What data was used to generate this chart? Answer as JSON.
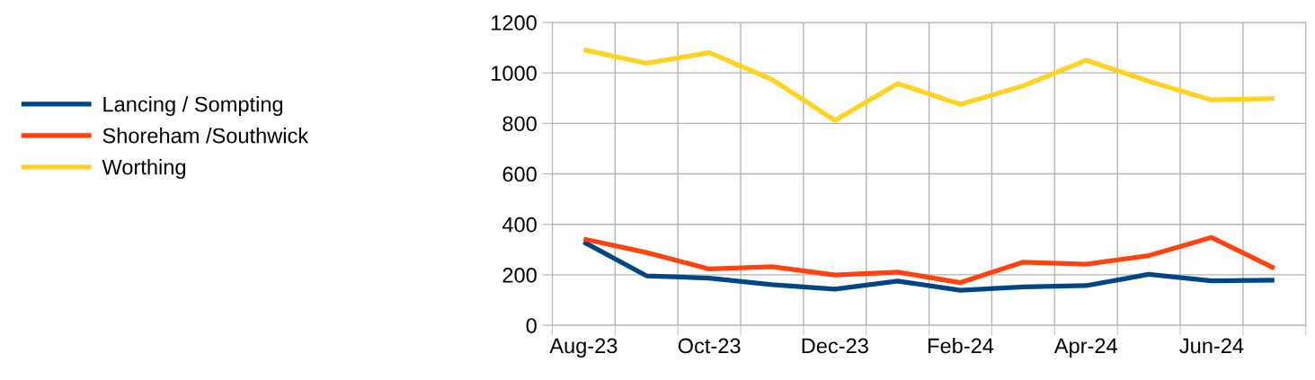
{
  "chart_data": {
    "type": "line",
    "categories": [
      "Aug-23",
      null,
      "Oct-23",
      null,
      "Dec-23",
      null,
      "Feb-24",
      null,
      "Apr-24",
      null,
      "Jun-24",
      null
    ],
    "series": [
      {
        "name": "Lancing / Sompting",
        "color": "#004586",
        "values": [
          330,
          196,
          187,
          161,
          143,
          175,
          139,
          152,
          157,
          202,
          176,
          179
        ]
      },
      {
        "name": "Shoreham /Southwick",
        "color": "#ff420e",
        "values": [
          342,
          288,
          223,
          232,
          199,
          211,
          169,
          250,
          242,
          276,
          348,
          226
        ]
      },
      {
        "name": "Worthing",
        "color": "#ffd320",
        "values": [
          1092,
          1038,
          1080,
          974,
          812,
          958,
          875,
          949,
          1050,
          967,
          893,
          899
        ]
      }
    ],
    "ylim": [
      0,
      1200
    ],
    "yticks": [
      0,
      200,
      400,
      600,
      800,
      1000,
      1200
    ],
    "grid": true,
    "legend": "left",
    "marker": "none",
    "line_style": "solid"
  }
}
